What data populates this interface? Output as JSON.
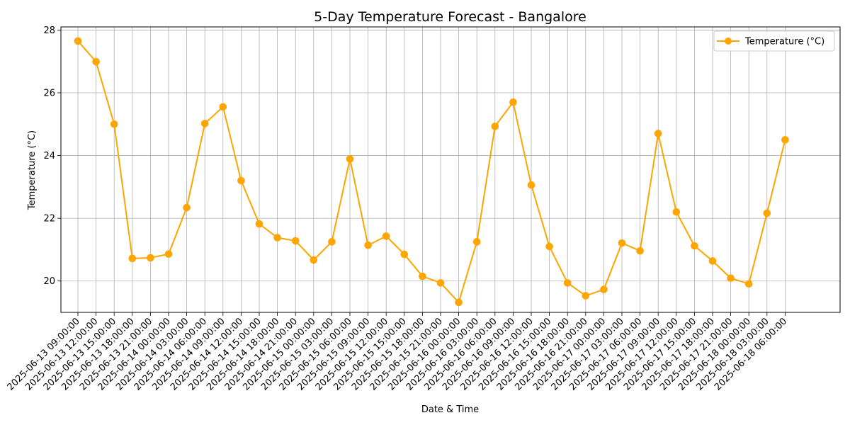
{
  "chart_data": {
    "type": "line",
    "title": "5-Day Temperature Forecast - Bangalore",
    "xlabel": "Date & Time",
    "ylabel": "Temperature (°C)",
    "ylim": [
      19.0,
      28.1
    ],
    "yticks": [
      20,
      22,
      24,
      26,
      28
    ],
    "grid": true,
    "legend_position": "top-right",
    "color": "#FFA500",
    "categories": [
      "2025-06-13 09:00:00",
      "2025-06-13 12:00:00",
      "2025-06-13 15:00:00",
      "2025-06-13 18:00:00",
      "2025-06-13 21:00:00",
      "2025-06-14 00:00:00",
      "2025-06-14 03:00:00",
      "2025-06-14 06:00:00",
      "2025-06-14 09:00:00",
      "2025-06-14 12:00:00",
      "2025-06-14 15:00:00",
      "2025-06-14 18:00:00",
      "2025-06-14 21:00:00",
      "2025-06-15 00:00:00",
      "2025-06-15 03:00:00",
      "2025-06-15 06:00:00",
      "2025-06-15 09:00:00",
      "2025-06-15 12:00:00",
      "2025-06-15 15:00:00",
      "2025-06-15 18:00:00",
      "2025-06-15 21:00:00",
      "2025-06-16 00:00:00",
      "2025-06-16 03:00:00",
      "2025-06-16 06:00:00",
      "2025-06-16 09:00:00",
      "2025-06-16 12:00:00",
      "2025-06-16 15:00:00",
      "2025-06-16 18:00:00",
      "2025-06-16 21:00:00",
      "2025-06-17 00:00:00",
      "2025-06-17 03:00:00",
      "2025-06-17 06:00:00",
      "2025-06-17 09:00:00",
      "2025-06-17 12:00:00",
      "2025-06-17 15:00:00",
      "2025-06-17 18:00:00",
      "2025-06-17 21:00:00",
      "2025-06-18 00:00:00",
      "2025-06-18 03:00:00",
      "2025-06-18 06:00:00"
    ],
    "series": [
      {
        "name": "Temperature (°C)",
        "values": [
          27.65,
          26.99,
          25.0,
          20.72,
          20.74,
          20.86,
          22.34,
          25.02,
          25.55,
          23.2,
          21.82,
          21.38,
          21.28,
          20.67,
          21.25,
          23.89,
          21.14,
          21.43,
          20.85,
          20.15,
          19.94,
          19.32,
          21.25,
          24.93,
          25.7,
          23.06,
          21.1,
          19.94,
          19.53,
          19.73,
          21.21,
          20.96,
          24.7,
          22.2,
          21.12,
          20.64,
          20.09,
          19.91,
          22.16,
          24.5
        ]
      }
    ]
  }
}
